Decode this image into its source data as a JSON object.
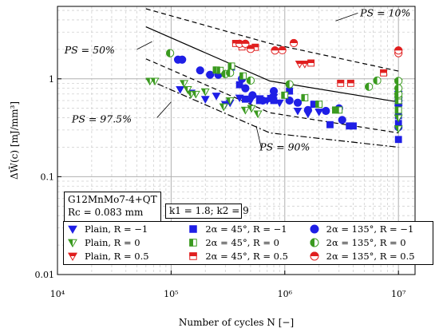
{
  "chart_data": {
    "type": "scatter",
    "xscale": "log",
    "yscale": "log",
    "xlim": [
      10000,
      14000000
    ],
    "ylim": [
      0.01,
      5.5
    ],
    "xlabel": "Number of cycles N [−]",
    "ylabel": "ΔW̄(c) [mJ/mm³]",
    "x_ticks": [
      {
        "value": 10000,
        "label": "10⁴"
      },
      {
        "value": 100000,
        "label": "10⁵"
      },
      {
        "value": 1000000,
        "label": "10⁶"
      },
      {
        "value": 10000000,
        "label": "10⁷"
      }
    ],
    "y_ticks": [
      {
        "value": 0.01,
        "label": "0.01"
      },
      {
        "value": 0.1,
        "label": "0.1"
      },
      {
        "value": 1,
        "label": "1"
      }
    ],
    "grid": true,
    "material_box": {
      "line1": "G12MnMo7-4+QT",
      "line2": "Rc = 0.083 mm"
    },
    "k_box": "k1 = 1.8;  k2 = 9",
    "curves": [
      {
        "label": "PS = 10%",
        "style": "dashed",
        "points": [
          [
            60000,
            5.2
          ],
          [
            740000,
            2.3
          ],
          [
            10000000,
            1.2
          ]
        ]
      },
      {
        "label": "PS = 50%",
        "style": "solid",
        "points": [
          [
            60000,
            3.4
          ],
          [
            740000,
            0.95
          ],
          [
            10000000,
            0.58
          ]
        ]
      },
      {
        "label": "PS = 97.5%",
        "style": "dashdot",
        "points": [
          [
            60000,
            1.0
          ],
          [
            740000,
            0.28
          ],
          [
            10000000,
            0.2
          ]
        ]
      },
      {
        "label": "PS = 90%",
        "style": "dashed2",
        "points": [
          [
            60000,
            1.6
          ],
          [
            740000,
            0.45
          ],
          [
            10000000,
            0.28
          ]
        ]
      }
    ],
    "annotations": [
      {
        "text": "PS = 10%",
        "x": 4600000,
        "y": 4.7
      },
      {
        "text": "PS = 50%",
        "x": 32000,
        "y": 1.95
      },
      {
        "text": "PS = 97.5%",
        "x": 45000,
        "y": 0.385
      },
      {
        "text": "PS = 90%",
        "x": 600000,
        "y": 0.2
      }
    ],
    "series": [
      {
        "name": "Plain, R = −1",
        "color": "#1f1fe6",
        "marker": "triangle-down",
        "points": [
          [
            120000,
            0.78
          ],
          [
            150000,
            0.72
          ],
          [
            200000,
            0.62
          ],
          [
            250000,
            0.67
          ],
          [
            300000,
            0.55
          ],
          [
            330000,
            0.57
          ],
          [
            400000,
            0.64
          ],
          [
            500000,
            0.6
          ],
          [
            600000,
            0.63
          ],
          [
            700000,
            0.6
          ],
          [
            800000,
            0.65
          ],
          [
            900000,
            0.57
          ],
          [
            1300000,
            0.47
          ],
          [
            1600000,
            0.44
          ],
          [
            2000000,
            0.46
          ],
          [
            10000000,
            0.52
          ],
          [
            10000000,
            0.6
          ],
          [
            10000000,
            0.7
          ],
          [
            10000000,
            0.5
          ]
        ]
      },
      {
        "name": "2α = 45°, R = −1",
        "color": "#1f1fe6",
        "marker": "square",
        "points": [
          [
            340000,
            1.32
          ],
          [
            400000,
            0.87
          ],
          [
            450000,
            0.62
          ],
          [
            600000,
            0.6
          ],
          [
            750000,
            0.63
          ],
          [
            800000,
            0.6
          ],
          [
            1100000,
            0.75
          ],
          [
            1800000,
            0.55
          ],
          [
            2500000,
            0.34
          ],
          [
            3700000,
            0.33
          ],
          [
            4000000,
            0.33
          ],
          [
            10000000,
            0.24
          ],
          [
            10000000,
            0.35
          ],
          [
            10000000,
            0.42
          ]
        ]
      },
      {
        "name": "2α = 135°, R = −1",
        "color": "#1f1fe6",
        "marker": "circle",
        "points": [
          [
            115000,
            1.57
          ],
          [
            125000,
            1.57
          ],
          [
            180000,
            1.22
          ],
          [
            220000,
            1.1
          ],
          [
            260000,
            1.1
          ],
          [
            420000,
            1.0
          ],
          [
            450000,
            0.8
          ],
          [
            520000,
            0.68
          ],
          [
            640000,
            0.6
          ],
          [
            800000,
            0.75
          ],
          [
            1100000,
            0.6
          ],
          [
            1300000,
            0.57
          ],
          [
            1600000,
            0.48
          ],
          [
            2300000,
            0.47
          ],
          [
            3000000,
            0.5
          ],
          [
            3200000,
            0.38
          ],
          [
            10000000,
            0.32
          ],
          [
            10000000,
            0.6
          ]
        ]
      },
      {
        "name": "Plain, R = 0",
        "color": "#3a9a1f",
        "marker": "triangle-down",
        "points": [
          [
            65000,
            0.95
          ],
          [
            72000,
            0.95
          ],
          [
            130000,
            0.9
          ],
          [
            140000,
            0.78
          ],
          [
            150000,
            0.7
          ],
          [
            165000,
            0.7
          ],
          [
            200000,
            0.74
          ],
          [
            290000,
            0.52
          ],
          [
            330000,
            0.6
          ],
          [
            450000,
            0.48
          ],
          [
            510000,
            0.5
          ],
          [
            580000,
            0.44
          ],
          [
            10000000,
            0.4
          ],
          [
            10000000,
            0.31
          ],
          [
            10000000,
            0.62
          ],
          [
            10000000,
            0.92
          ]
        ]
      },
      {
        "name": "2α = 45°, R = 0",
        "color": "#3a9a1f",
        "marker": "square-half",
        "points": [
          [
            250000,
            1.23
          ],
          [
            270000,
            1.22
          ],
          [
            340000,
            1.35
          ],
          [
            430000,
            1.07
          ],
          [
            1000000,
            0.68
          ],
          [
            1500000,
            0.64
          ],
          [
            2000000,
            0.55
          ],
          [
            2800000,
            0.48
          ],
          [
            3000000,
            0.48
          ],
          [
            10000000,
            0.48
          ],
          [
            10000000,
            0.6
          ],
          [
            10000000,
            0.67
          ]
        ]
      },
      {
        "name": "2α = 135°, R = 0",
        "color": "#3a9a1f",
        "marker": "circle-half",
        "points": [
          [
            98000,
            1.83
          ],
          [
            300000,
            1.12
          ],
          [
            330000,
            1.15
          ],
          [
            500000,
            0.96
          ],
          [
            1100000,
            0.88
          ],
          [
            5500000,
            0.83
          ],
          [
            6500000,
            0.96
          ],
          [
            10000000,
            0.7
          ],
          [
            10000000,
            0.8
          ],
          [
            10000000,
            0.95
          ]
        ]
      },
      {
        "name": "Plain, R = 0.5",
        "color": "#e01f1f",
        "marker": "triangle-down",
        "points": [
          [
            1350000,
            1.42
          ],
          [
            1500000,
            1.42
          ]
        ]
      },
      {
        "name": "2α = 45°, R = 0.5",
        "color": "#e01f1f",
        "marker": "square-half",
        "points": [
          [
            370000,
            2.3
          ],
          [
            420000,
            2.12
          ],
          [
            550000,
            2.1
          ],
          [
            1700000,
            1.45
          ],
          [
            3100000,
            0.9
          ],
          [
            3800000,
            0.9
          ],
          [
            7400000,
            1.15
          ]
        ]
      },
      {
        "name": "2α = 135°, R = 0.5",
        "color": "#e01f1f",
        "marker": "circle-half",
        "points": [
          [
            400000,
            2.28
          ],
          [
            450000,
            2.28
          ],
          [
            500000,
            2.02
          ],
          [
            820000,
            1.95
          ],
          [
            950000,
            1.96
          ],
          [
            1200000,
            2.32
          ],
          [
            10000000,
            1.83
          ],
          [
            10000000,
            1.95
          ]
        ]
      }
    ],
    "legend": {
      "placement": "bottom-left",
      "rows": [
        [
          "Plain,  R = −1",
          "2α = 45°,  R = −1",
          "2α = 135°,  R = −1"
        ],
        [
          "Plain,  R = 0",
          "2α = 45°,  R = 0",
          "2α = 135°,  R = 0"
        ],
        [
          "Plain,  R = 0.5",
          "2α = 45°,  R = 0.5",
          "2α = 135°,  R = 0.5"
        ]
      ]
    }
  }
}
